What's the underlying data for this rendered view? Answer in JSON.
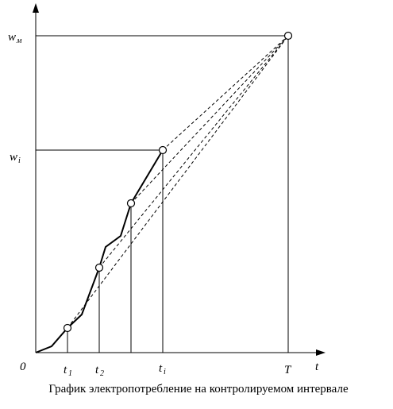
{
  "labels": {
    "w_max": {
      "base": "w",
      "sub": "м"
    },
    "w_i": {
      "base": "w",
      "sub": "i"
    },
    "origin": "0",
    "t1": {
      "base": "t",
      "sub": "1"
    },
    "t2": {
      "base": "t",
      "sub": "2"
    },
    "t_i": {
      "base": "t",
      "sub": "i"
    },
    "T": "T",
    "t_axis": "t"
  },
  "caption": "График электропотребление на контролируемом интервале"
}
